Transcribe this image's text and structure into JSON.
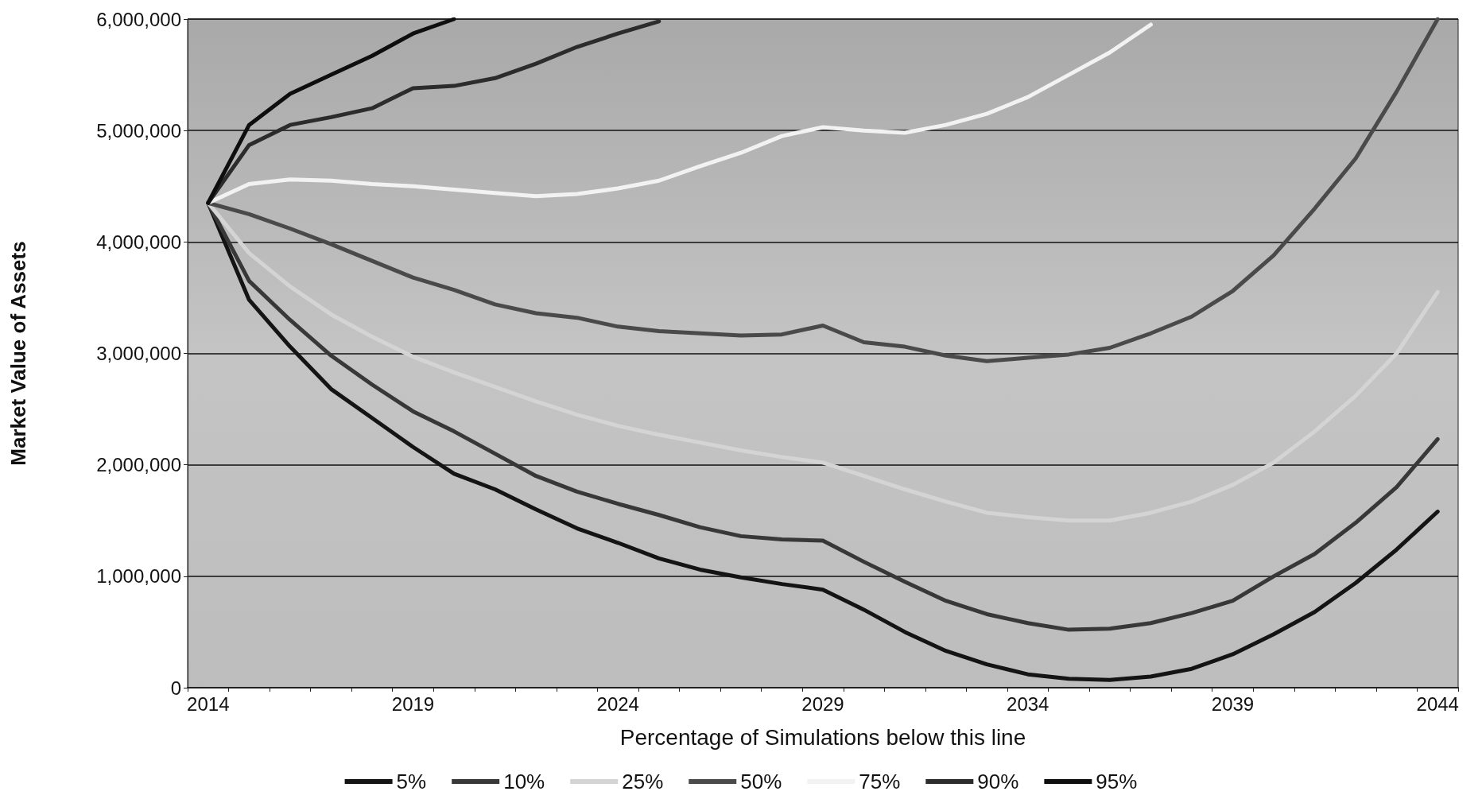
{
  "chart_data": {
    "type": "line",
    "xlabel": "Percentage of Simulations below this line",
    "ylabel": "Market Value of Assets",
    "categories": [
      "2014",
      null,
      null,
      null,
      null,
      "2019",
      null,
      null,
      null,
      null,
      "2024",
      null,
      null,
      null,
      null,
      "2029",
      null,
      null,
      null,
      null,
      "2034",
      null,
      null,
      null,
      null,
      "2039",
      null,
      null,
      null,
      null,
      "2044"
    ],
    "ylim": [
      0,
      6000000
    ],
    "yticks": [
      {
        "value": 0,
        "label": "0"
      },
      {
        "value": 1000000,
        "label": "1,000,000"
      },
      {
        "value": 2000000,
        "label": "2,000,000"
      },
      {
        "value": 3000000,
        "label": "3,000,000"
      },
      {
        "value": 4000000,
        "label": "4,000,000"
      },
      {
        "value": 5000000,
        "label": "5,000,000"
      },
      {
        "value": 6000000,
        "label": "6,000,000"
      }
    ],
    "grid": "y",
    "legend": "bottom",
    "marker": "none",
    "line_style": "solid",
    "series": [
      {
        "name": "5%",
        "color": "#141414",
        "values": [
          4350000,
          3480000,
          3060000,
          2680000,
          2420000,
          2160000,
          1920000,
          1780000,
          1600000,
          1430000,
          1300000,
          1160000,
          1060000,
          990000,
          930000,
          880000,
          700000,
          500000,
          330000,
          210000,
          120000,
          80000,
          70000,
          100000,
          170000,
          300000,
          480000,
          680000,
          940000,
          1240000,
          1580000
        ]
      },
      {
        "name": "10%",
        "color": "#383838",
        "values": [
          4350000,
          3650000,
          3300000,
          2980000,
          2720000,
          2480000,
          2300000,
          2100000,
          1900000,
          1760000,
          1650000,
          1550000,
          1440000,
          1360000,
          1330000,
          1320000,
          1130000,
          950000,
          780000,
          660000,
          580000,
          520000,
          530000,
          580000,
          670000,
          780000,
          1000000,
          1200000,
          1480000,
          1800000,
          2230000
        ]
      },
      {
        "name": "25%",
        "color": "#d4d4d4",
        "values": [
          4350000,
          3900000,
          3600000,
          3350000,
          3150000,
          2970000,
          2830000,
          2700000,
          2570000,
          2450000,
          2350000,
          2270000,
          2200000,
          2130000,
          2070000,
          2020000,
          1900000,
          1780000,
          1670000,
          1570000,
          1530000,
          1500000,
          1500000,
          1570000,
          1670000,
          1820000,
          2020000,
          2300000,
          2620000,
          3000000,
          3550000
        ]
      },
      {
        "name": "50%",
        "color": "#4a4a4a",
        "values": [
          4350000,
          4250000,
          4120000,
          3980000,
          3830000,
          3680000,
          3570000,
          3440000,
          3360000,
          3320000,
          3240000,
          3200000,
          3180000,
          3160000,
          3170000,
          3250000,
          3100000,
          3060000,
          2980000,
          2930000,
          2960000,
          2990000,
          3050000,
          3180000,
          3330000,
          3560000,
          3880000,
          4300000,
          4750000,
          5350000,
          6000000
        ]
      },
      {
        "name": "75%",
        "color": "#f2f2f2",
        "values": [
          4350000,
          4520000,
          4560000,
          4550000,
          4520000,
          4500000,
          4470000,
          4440000,
          4410000,
          4430000,
          4480000,
          4550000,
          4680000,
          4800000,
          4950000,
          5030000,
          5000000,
          4980000,
          5050000,
          5150000,
          5300000,
          5500000,
          5700000,
          5950000,
          null,
          null,
          null,
          null,
          null,
          null,
          null
        ]
      },
      {
        "name": "90%",
        "color": "#2c2c2c",
        "values": [
          4350000,
          4870000,
          5050000,
          5120000,
          5200000,
          5380000,
          5400000,
          5470000,
          5600000,
          5750000,
          5870000,
          5980000,
          null,
          null,
          null,
          null,
          null,
          null,
          null,
          null,
          null,
          null,
          null,
          null,
          null,
          null,
          null,
          null,
          null,
          null,
          null
        ]
      },
      {
        "name": "95%",
        "color": "#0e0e0e",
        "values": [
          4350000,
          5050000,
          5330000,
          5500000,
          5670000,
          5870000,
          6000000,
          null,
          null,
          null,
          null,
          null,
          null,
          null,
          null,
          null,
          null,
          null,
          null,
          null,
          null,
          null,
          null,
          null,
          null,
          null,
          null,
          null,
          null,
          null,
          null
        ]
      }
    ]
  }
}
